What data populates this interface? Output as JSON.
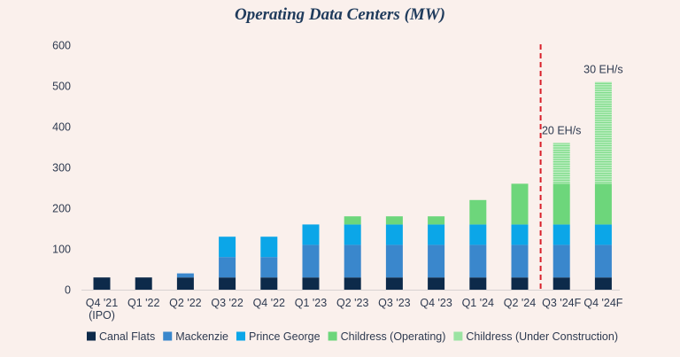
{
  "chart_data": {
    "type": "bar",
    "stacked": true,
    "title": "Operating Data Centers (MW)",
    "xlabel": "",
    "ylabel": "",
    "ylim": [
      0,
      600
    ],
    "yticks": [
      0,
      100,
      200,
      300,
      400,
      500,
      600
    ],
    "categories": [
      [
        "Q4 '21",
        "(IPO)"
      ],
      [
        "Q1 '22"
      ],
      [
        "Q2 '22"
      ],
      [
        "Q3 '22"
      ],
      [
        "Q4 '22"
      ],
      [
        "Q1 '23"
      ],
      [
        "Q2 '23"
      ],
      [
        "Q3 '23"
      ],
      [
        "Q4 '23"
      ],
      [
        "Q1 '24"
      ],
      [
        "Q2 '24"
      ],
      [
        "Q3 '24F"
      ],
      [
        "Q4 '24F"
      ]
    ],
    "series": [
      {
        "name": "Canal Flats",
        "color": "#0d2a4a",
        "pattern": "solid",
        "values": [
          30,
          30,
          30,
          30,
          30,
          30,
          30,
          30,
          30,
          30,
          30,
          30,
          30
        ]
      },
      {
        "name": "Mackenzie",
        "color": "#3a87cc",
        "pattern": "solid",
        "values": [
          0,
          0,
          10,
          50,
          50,
          80,
          80,
          80,
          80,
          80,
          80,
          80,
          80
        ]
      },
      {
        "name": "Prince George",
        "color": "#0ba6e8",
        "pattern": "solid",
        "values": [
          0,
          0,
          0,
          50,
          50,
          50,
          50,
          50,
          50,
          50,
          50,
          50,
          50
        ]
      },
      {
        "name": "Childress (Operating)",
        "color": "#6dd67b",
        "pattern": "solid",
        "values": [
          0,
          0,
          0,
          0,
          0,
          0,
          20,
          20,
          20,
          60,
          100,
          100,
          100
        ]
      },
      {
        "name": "Childress (Under Construction)",
        "color": "#9be3a2",
        "pattern": "striped",
        "values": [
          0,
          0,
          0,
          0,
          0,
          0,
          0,
          0,
          0,
          0,
          0,
          100,
          250
        ]
      }
    ],
    "annotations": [
      {
        "category_index": 11,
        "text": "20 EH/s"
      },
      {
        "category_index": 12,
        "text": "30 EH/s"
      }
    ],
    "divider": {
      "between": [
        10,
        11
      ],
      "style": "dashed",
      "color": "#d8202a"
    },
    "legend_position": "bottom"
  }
}
